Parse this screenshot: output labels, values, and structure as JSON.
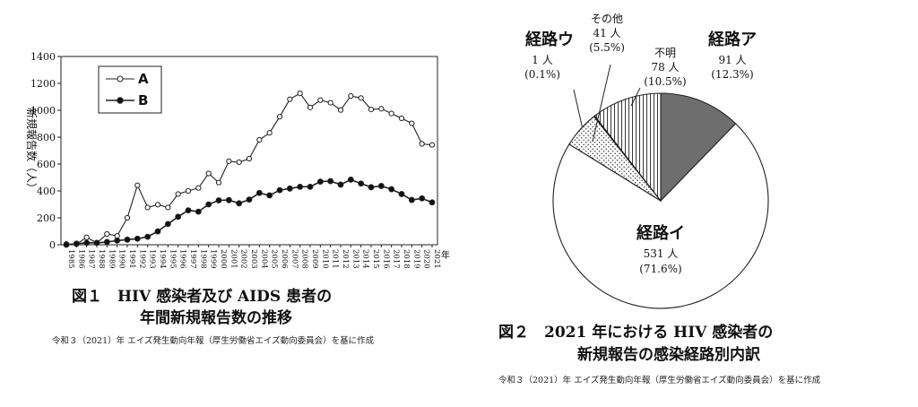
{
  "figure1": {
    "caption_line1": "図１　HIV 感染者及び AIDS 患者の",
    "caption_line2": "年間新規報告数の推移",
    "source": "令和３（2021）年 エイズ発生動向年報（厚生労働省エイズ動向委員会）を基に作成"
  },
  "figure2": {
    "caption_line1": "図２　2021 年における HIV 感染者の",
    "caption_line2": "新規報告の感染経路別内訳",
    "source": "令和３（2021）年 エイズ発生動向年報（厚生労働省エイズ動向委員会）を基に作成"
  },
  "chart_data": [
    {
      "type": "line",
      "ylabel": "新規報告数（人）",
      "xunit": "年",
      "ylim": [
        0,
        1400
      ],
      "yticks": [
        0,
        200,
        400,
        600,
        800,
        1000,
        1200,
        1400
      ],
      "grid": false,
      "legend_position": "top-left",
      "x": [
        1985,
        1986,
        1987,
        1988,
        1989,
        1990,
        1991,
        1992,
        1993,
        1994,
        1995,
        1996,
        1997,
        1998,
        1999,
        2000,
        2001,
        2002,
        2003,
        2004,
        2005,
        2006,
        2007,
        2008,
        2009,
        2010,
        2011,
        2012,
        2013,
        2014,
        2015,
        2016,
        2017,
        2018,
        2019,
        2020,
        2021
      ],
      "series": [
        {
          "name": "A",
          "marker": "open-circle",
          "values": [
            6,
            5,
            55,
            14,
            80,
            66,
            200,
            442,
            277,
            298,
            277,
            377,
            400,
            422,
            530,
            462,
            621,
            614,
            640,
            780,
            832,
            952,
            1082,
            1126,
            1021,
            1075,
            1056,
            1002,
            1106,
            1091,
            1006,
            1011,
            976,
            940,
            903,
            750,
            742
          ]
        },
        {
          "name": "B",
          "marker": "filled-circle",
          "values": [
            0,
            8,
            14,
            14,
            21,
            31,
            38,
            45,
            59,
            99,
            154,
            208,
            256,
            246,
            300,
            330,
            332,
            308,
            336,
            385,
            367,
            406,
            418,
            431,
            431,
            469,
            473,
            447,
            484,
            455,
            428,
            437,
            413,
            377,
            333,
            345,
            315
          ]
        }
      ]
    },
    {
      "type": "pie",
      "slices": [
        {
          "label": "経路ア",
          "value": 91,
          "count_text": "91 人",
          "pct_text": "(12.3%)",
          "fill": "#6e6e6e",
          "pattern": "solid"
        },
        {
          "label": "経路イ",
          "value": 531,
          "count_text": "531 人",
          "pct_text": "(71.6%)",
          "fill": "#ffffff",
          "pattern": "none"
        },
        {
          "label": "その他",
          "value": 41,
          "count_text": "41 人",
          "pct_text": "(5.5%)",
          "fill": "#ffffff",
          "pattern": "dots"
        },
        {
          "label": "経路ウ",
          "value": 1,
          "count_text": "1 人",
          "pct_text": "(0.1%)",
          "fill": "#ffffff",
          "pattern": "none"
        },
        {
          "label": "不明",
          "value": 78,
          "count_text": "78 人",
          "pct_text": "(10.5%)",
          "fill": "#ffffff",
          "pattern": "vertical-lines"
        }
      ]
    }
  ]
}
